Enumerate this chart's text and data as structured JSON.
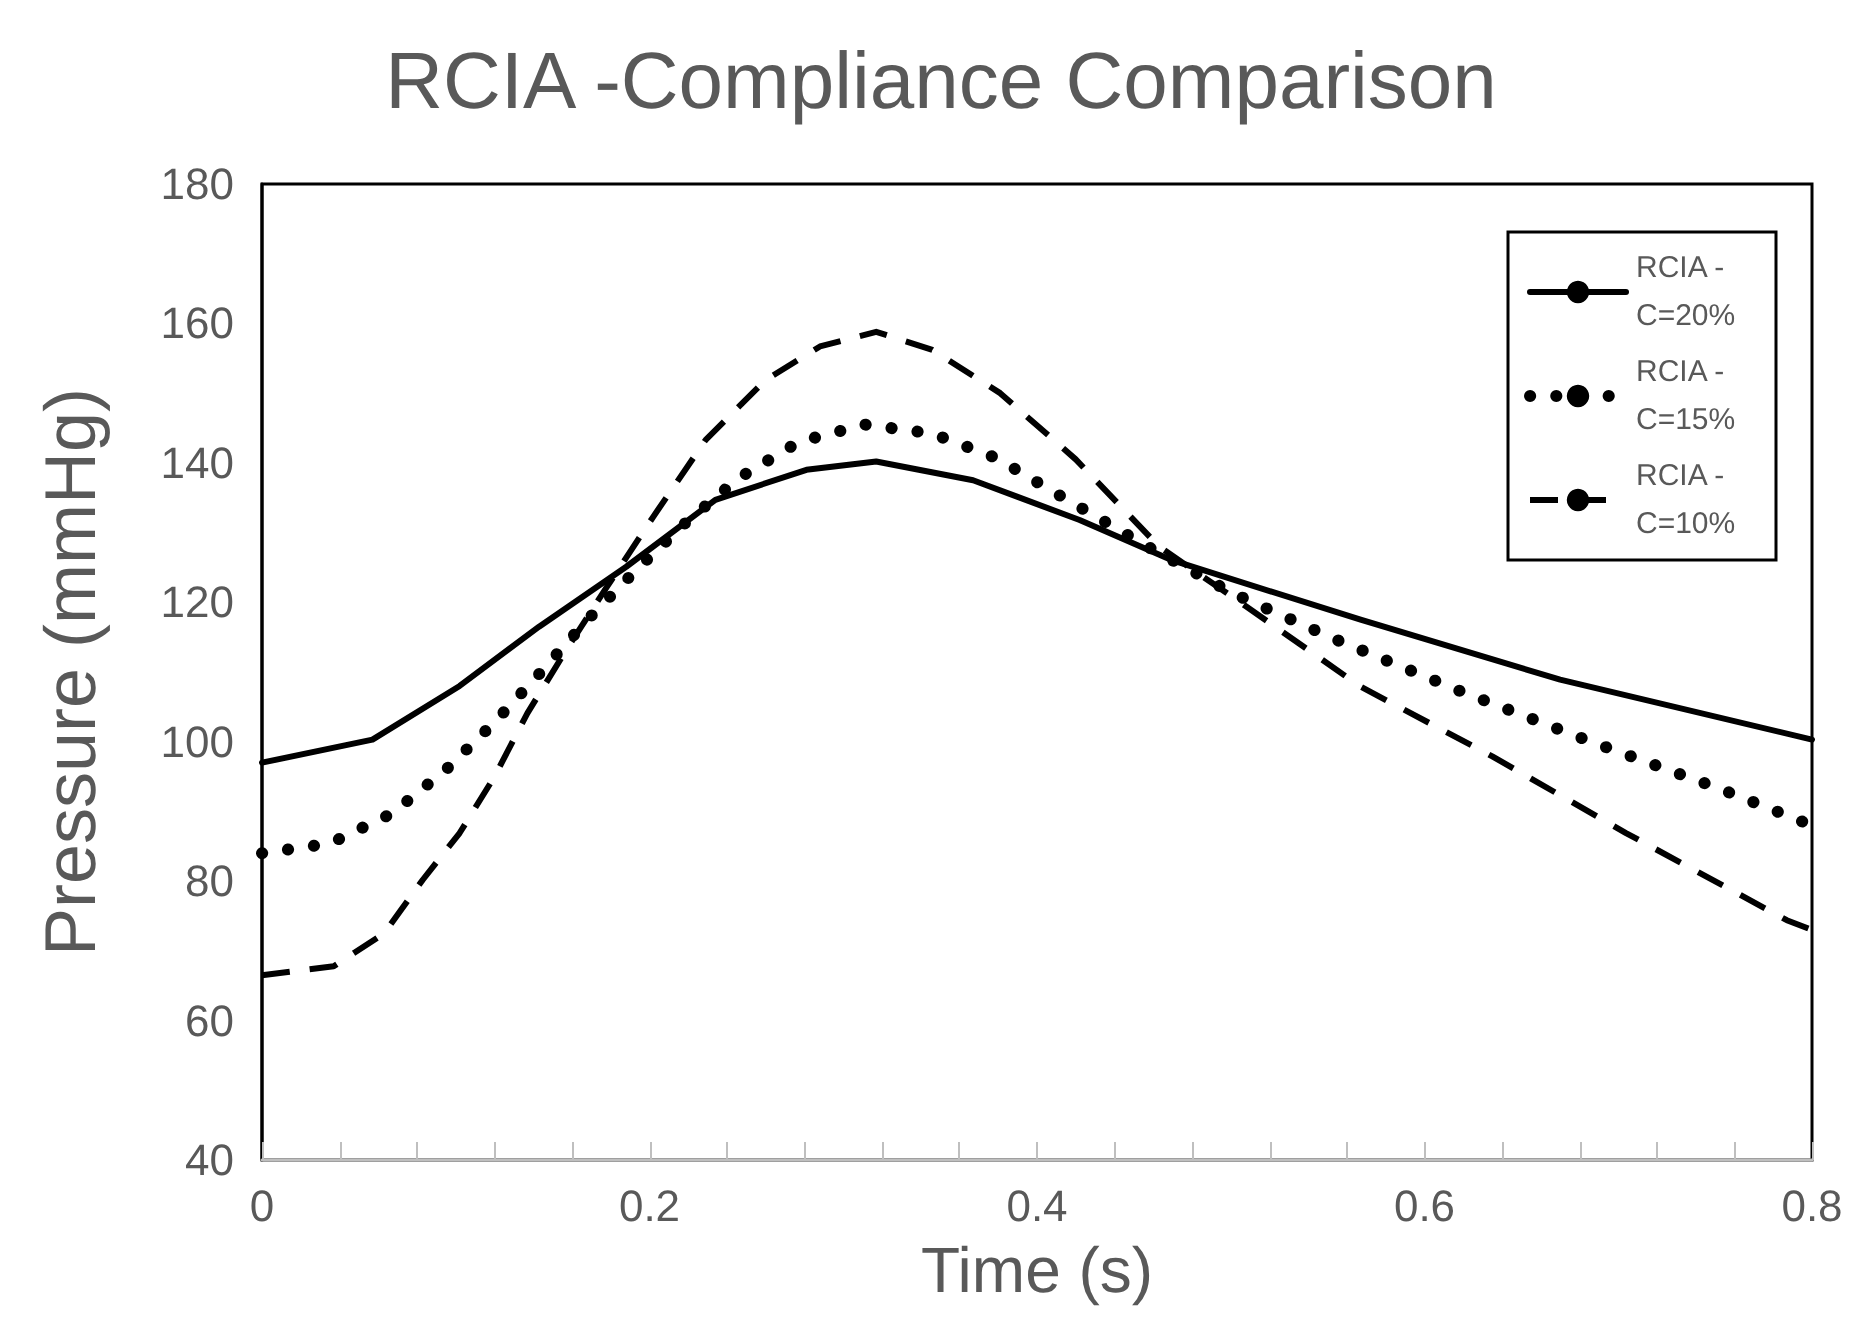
{
  "chart_data": {
    "type": "line",
    "title": "RCIA -Compliance Comparison",
    "xlabel": "Time (s)",
    "ylabel": "Pressure (mmHg)",
    "xlim": [
      0,
      0.8
    ],
    "xticks": [
      0,
      {
        "value": 0.04,
        "label": null
      },
      {
        "value": 0.08,
        "label": null
      },
      {
        "value": 0.12,
        "label": null
      },
      {
        "value": 0.16,
        "label": null
      },
      0.2,
      {
        "value": 0.24,
        "label": null
      },
      {
        "value": 0.28,
        "label": null
      },
      {
        "value": 0.32,
        "label": null
      },
      {
        "value": 0.36,
        "label": null
      },
      0.4,
      {
        "value": 0.44,
        "label": null
      },
      {
        "value": 0.48,
        "label": null
      },
      {
        "value": 0.52,
        "label": null
      },
      {
        "value": 0.56,
        "label": null
      },
      0.6,
      {
        "value": 0.64,
        "label": null
      },
      {
        "value": 0.68,
        "label": null
      },
      {
        "value": 0.72,
        "label": null
      },
      {
        "value": 0.76,
        "label": null
      },
      0.8
    ],
    "ylim": [
      40,
      180
    ],
    "yticks": [
      40,
      60,
      80,
      100,
      120,
      140,
      160,
      180
    ],
    "grid": false,
    "legend": "top right",
    "marker": "none",
    "series": [
      {
        "name": "RCIA - C=20%",
        "color": "#000000",
        "line_style": "solid",
        "x": [
          0,
          0.057,
          0.102,
          0.143,
          0.188,
          0.234,
          0.281,
          0.317,
          0.367,
          0.422,
          0.47,
          0.567,
          0.67,
          0.8
        ],
        "values": [
          97,
          100.3,
          108,
          116.5,
          125.1,
          134.7,
          139,
          140.2,
          137.5,
          131.8,
          126,
          117.5,
          108.9,
          100.3
        ]
      },
      {
        "name": "RCIA - C=15%",
        "color": "#000000",
        "line_style": "dotted",
        "x": [
          0,
          0.035,
          0.067,
          0.095,
          0.12,
          0.144,
          0.168,
          0.193,
          0.219,
          0.246,
          0.277,
          0.311,
          0.346,
          0.379,
          0.41,
          0.457,
          0.501,
          0.553,
          0.619,
          0.686,
          0.752,
          0.8
        ],
        "values": [
          84,
          85.4,
          89.7,
          96,
          102.8,
          110,
          117.5,
          124.6,
          131.5,
          137.8,
          143,
          145.5,
          144.2,
          140.7,
          135.6,
          128,
          121.3,
          114.8,
          107.2,
          100,
          93.3,
          88
        ]
      },
      {
        "name": "RCIA - C=10%",
        "color": "#000000",
        "line_style": "dashed",
        "x": [
          0,
          0.037,
          0.063,
          0.083,
          0.102,
          0.12,
          0.137,
          0.158,
          0.178,
          0.202,
          0.229,
          0.26,
          0.288,
          0.317,
          0.346,
          0.381,
          0.42,
          0.463,
          0.508,
          0.567,
          0.635,
          0.704,
          0.787,
          0.8
        ],
        "values": [
          66.5,
          67.8,
          72.5,
          80.2,
          86.9,
          95,
          104.1,
          113.6,
          122.2,
          132.3,
          143.3,
          151.9,
          156.7,
          158.8,
          156.2,
          150,
          140.5,
          128,
          119.4,
          107.9,
          97.9,
          86.9,
          74.4,
          73
        ]
      }
    ]
  }
}
